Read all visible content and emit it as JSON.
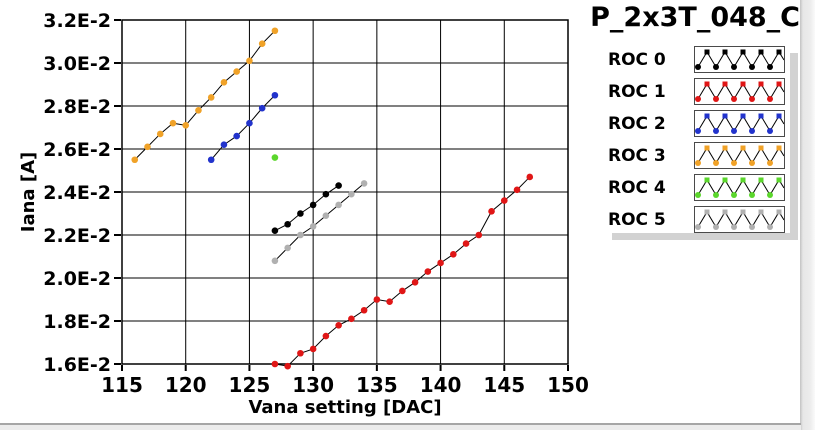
{
  "chart_data": {
    "type": "line",
    "title": "P_2x3T_048_C",
    "xlabel": "Vana setting [DAC]",
    "ylabel": "Iana [A]",
    "xlim": [
      115,
      150
    ],
    "ylim": [
      0.016,
      0.032
    ],
    "grid": true,
    "legend_position": "right",
    "x_ticks": [
      115,
      120,
      125,
      130,
      135,
      140,
      145,
      150
    ],
    "x_tick_labels": [
      "115",
      "120",
      "125",
      "130",
      "135",
      "140",
      "145",
      "150"
    ],
    "y_ticks": [
      0.016,
      0.018,
      0.02,
      0.022,
      0.024,
      0.026,
      0.028,
      0.03,
      0.032
    ],
    "y_tick_labels": [
      "1.6E-2",
      "1.8E-2",
      "2.0E-2",
      "2.2E-2",
      "2.4E-2",
      "2.6E-2",
      "2.8E-2",
      "3.0E-2",
      "3.2E-2"
    ],
    "line_color": "#000000",
    "series": [
      {
        "name": "ROC 0",
        "color": "#000000",
        "x": [
          127,
          128,
          129,
          130,
          131,
          132
        ],
        "y": [
          0.0222,
          0.0225,
          0.023,
          0.0234,
          0.0239,
          0.0243
        ]
      },
      {
        "name": "ROC 1",
        "color": "#e01616",
        "x": [
          127,
          128,
          129,
          130,
          131,
          132,
          133,
          134,
          135,
          136,
          137,
          138,
          139,
          140,
          141,
          142,
          143,
          144,
          145,
          146,
          147
        ],
        "y": [
          0.016,
          0.0159,
          0.0165,
          0.0167,
          0.0173,
          0.0178,
          0.0181,
          0.0185,
          0.019,
          0.0189,
          0.0194,
          0.0198,
          0.0203,
          0.0207,
          0.0211,
          0.0216,
          0.022,
          0.0231,
          0.0236,
          0.0241,
          0.0247
        ]
      },
      {
        "name": "ROC 2",
        "color": "#2233cc",
        "x": [
          122,
          123,
          124,
          125,
          126,
          127
        ],
        "y": [
          0.0255,
          0.0262,
          0.0266,
          0.0272,
          0.0279,
          0.0285
        ]
      },
      {
        "name": "ROC 3",
        "color": "#f0a228",
        "x": [
          116,
          117,
          118,
          119,
          120,
          121,
          122,
          123,
          124,
          125,
          126,
          127
        ],
        "y": [
          0.0255,
          0.0261,
          0.0267,
          0.0272,
          0.0271,
          0.0278,
          0.0284,
          0.0291,
          0.0296,
          0.0301,
          0.0309,
          0.0315
        ]
      },
      {
        "name": "ROC 4",
        "color": "#5bd62c",
        "x": [
          127
        ],
        "y": [
          0.0256
        ]
      },
      {
        "name": "ROC 5",
        "color": "#b0b0b0",
        "x": [
          127,
          128,
          129,
          130,
          131,
          132,
          133,
          134
        ],
        "y": [
          0.0208,
          0.0214,
          0.022,
          0.0224,
          0.0229,
          0.0234,
          0.0239,
          0.0244
        ]
      }
    ]
  },
  "legend": {
    "items": [
      {
        "label": "ROC 0",
        "color": "#000000"
      },
      {
        "label": "ROC 1",
        "color": "#e01616"
      },
      {
        "label": "ROC 2",
        "color": "#2233cc"
      },
      {
        "label": "ROC 3",
        "color": "#f0a228"
      },
      {
        "label": "ROC 4",
        "color": "#5bd62c"
      },
      {
        "label": "ROC 5",
        "color": "#b0b0b0"
      }
    ]
  },
  "panel": {
    "bevel_color": "#ececec",
    "shadow_color": "#d2d2d2",
    "grid_color": "#000000"
  }
}
